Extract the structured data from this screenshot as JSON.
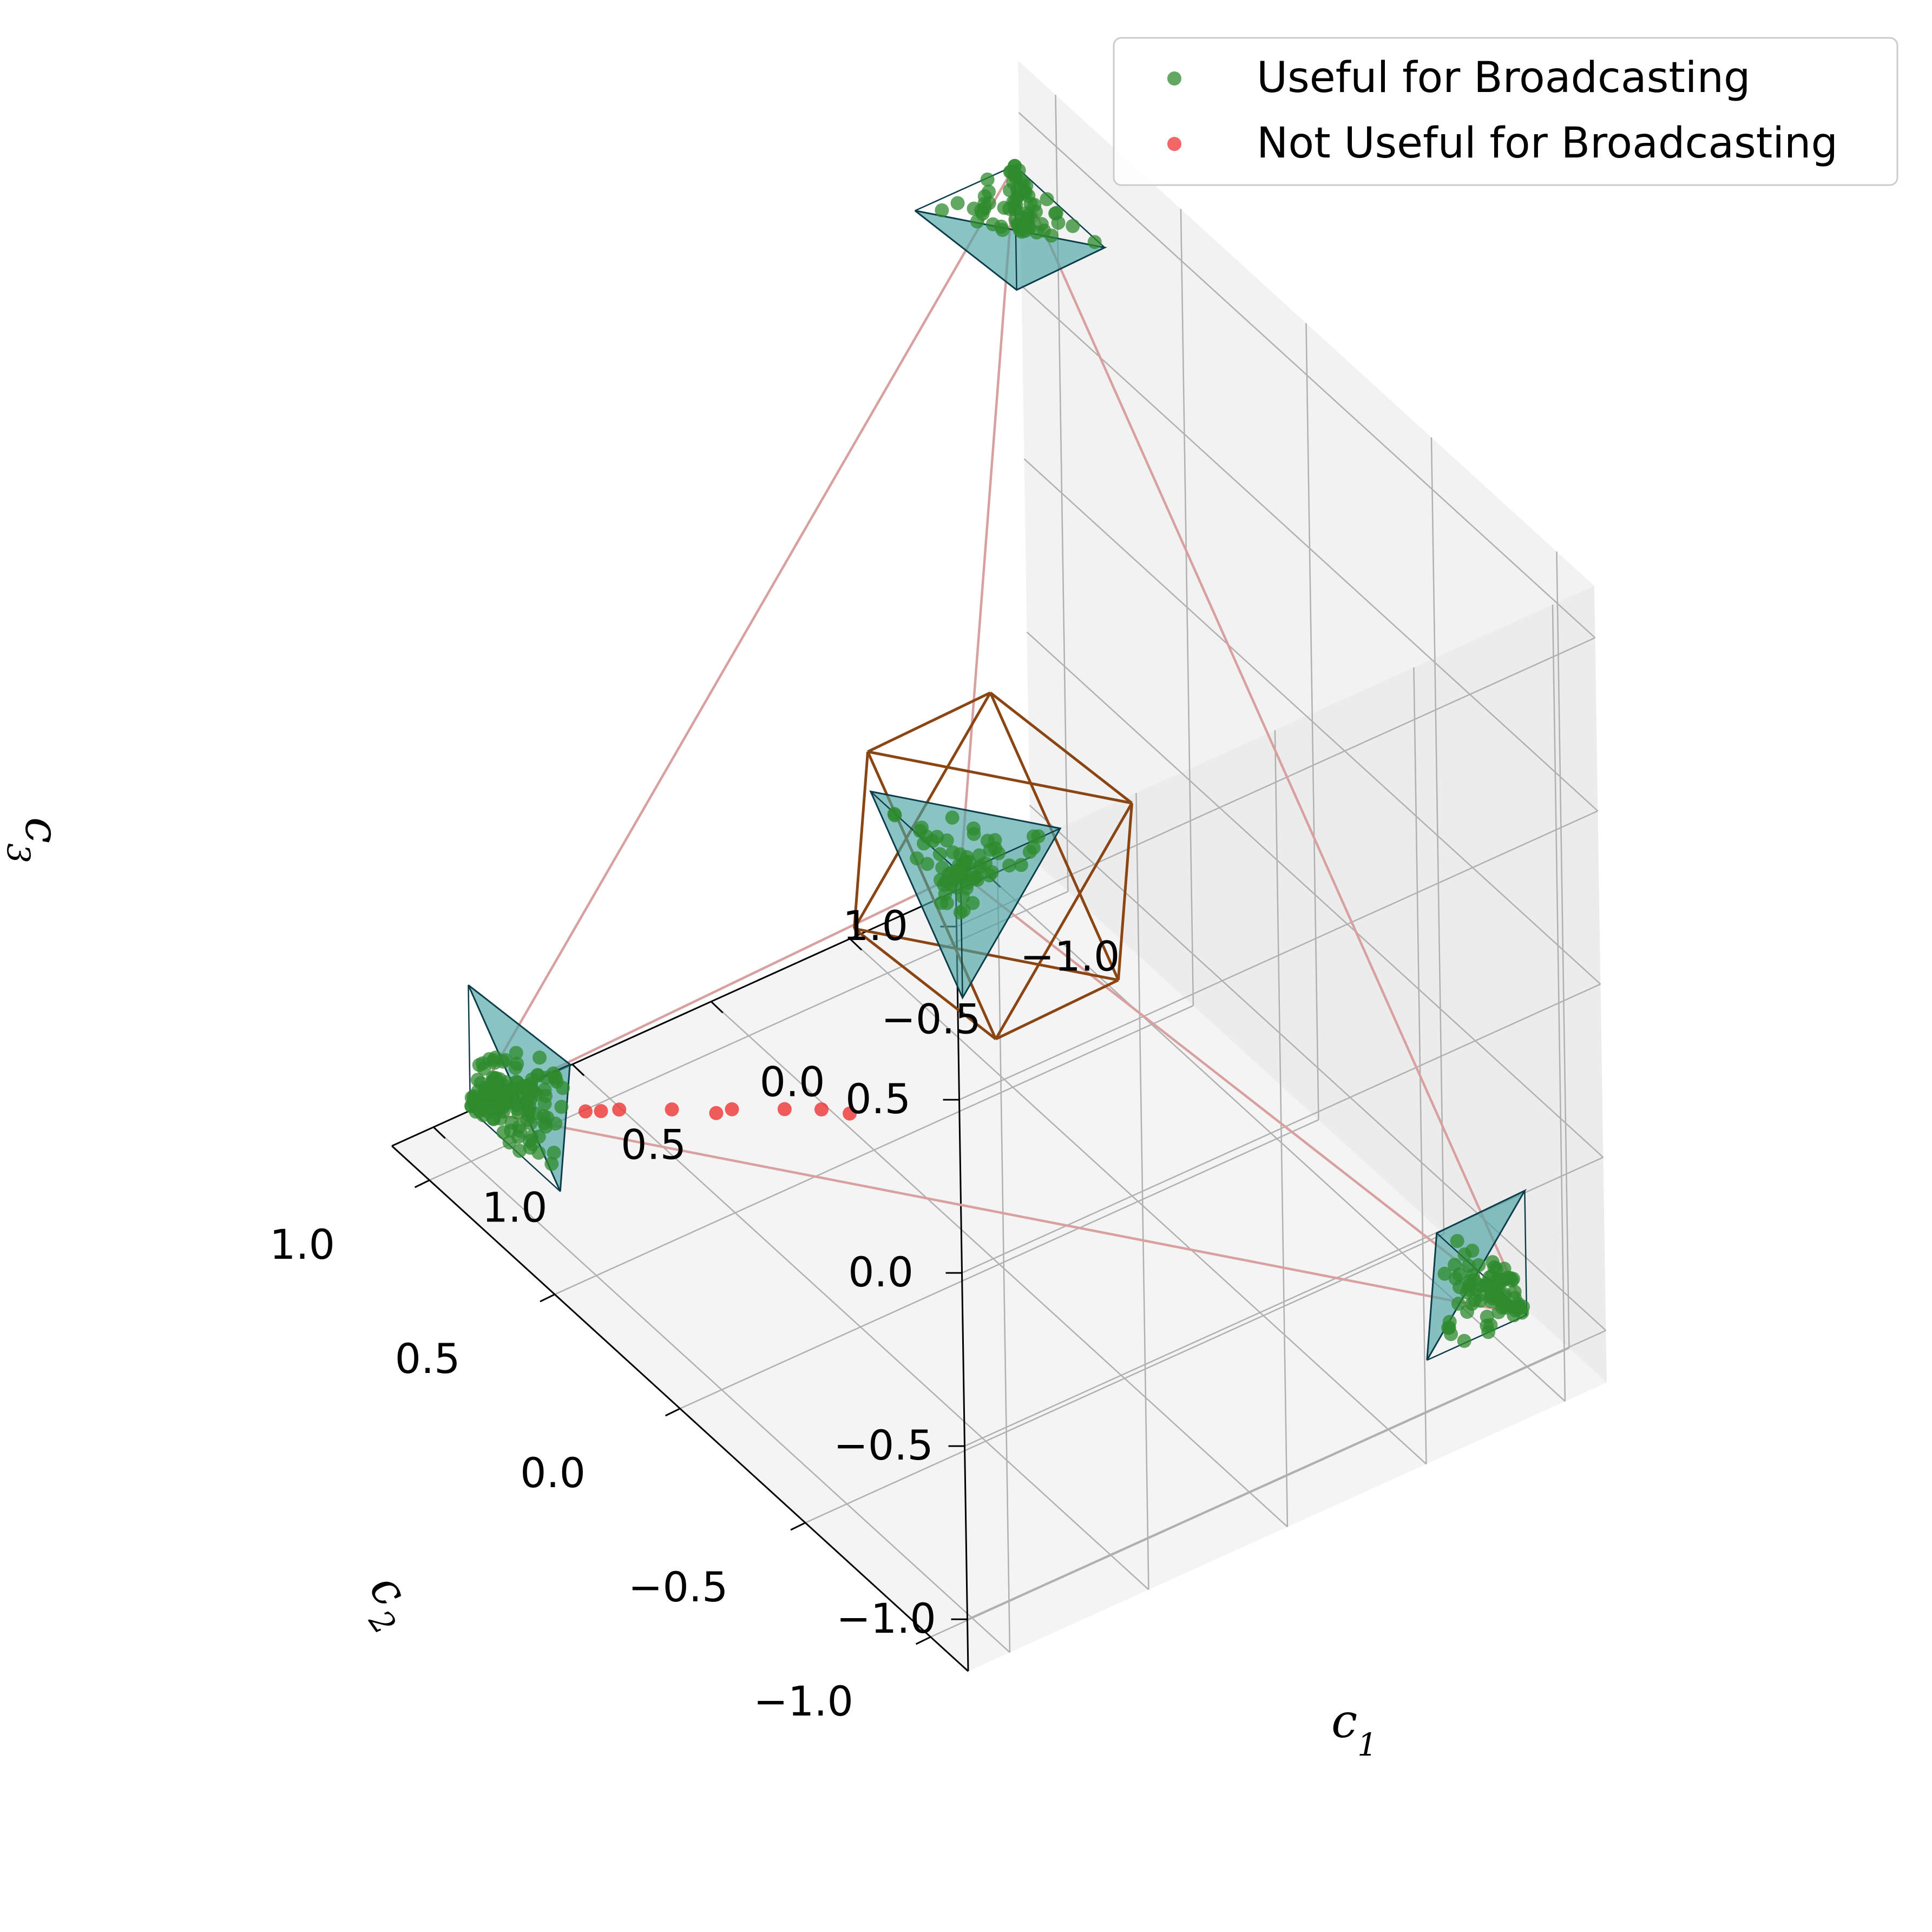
{
  "chart_data": {
    "type": "scatter",
    "subtype": "3d-scatter",
    "xlabel": "c1",
    "ylabel": "c2",
    "zlabel": "c3",
    "xlim": [
      -1.15,
      1.15
    ],
    "ylim": [
      -1.15,
      1.15
    ],
    "zlim": [
      -1.15,
      1.15
    ],
    "xticks": [
      "−1.0",
      "−0.5",
      "0.0",
      "0.5",
      "1.0"
    ],
    "yticks": [
      "−1.0",
      "−0.5",
      "0.0",
      "0.5",
      "1.0"
    ],
    "zticks": [
      "−1.0",
      "−0.5",
      "0.0",
      "0.5",
      "1.0"
    ],
    "grid": true,
    "legend_position": "top-right",
    "legend": [
      {
        "label": "Useful for Broadcasting",
        "color": "#2e8b2e"
      },
      {
        "label": "Not Useful for Broadcasting",
        "color": "#ee3333"
      }
    ],
    "colors": {
      "useful": "#2e8b2e",
      "not_useful": "#ee3333",
      "octahedron": "#8b4513",
      "tetra_edges": "#d9a0a0",
      "triangle_fill": "#4aa3a3",
      "triangle_edge": "#0b3d4a"
    },
    "tetrahedron_vertices": [
      [
        1,
        1,
        -1
      ],
      [
        -1,
        -1,
        -1
      ],
      [
        1,
        -1,
        1
      ],
      [
        -1,
        1,
        1
      ]
    ],
    "octahedron_vertices": [
      [
        0.5,
        0,
        0
      ],
      [
        -0.5,
        0,
        0
      ],
      [
        0,
        0.5,
        0
      ],
      [
        0,
        -0.5,
        0
      ],
      [
        0,
        0,
        0.5
      ],
      [
        0,
        0,
        -0.5
      ]
    ],
    "series": [
      {
        "name": "Useful for Broadcasting",
        "clusters": [
          {
            "vertex": [
              1,
              1,
              -1
            ],
            "count": 140,
            "spread": 0.28
          },
          {
            "vertex": [
              -1,
              -1,
              -1
            ],
            "count": 75,
            "spread": 0.28
          },
          {
            "vertex": [
              1,
              -1,
              1
            ],
            "count": 70,
            "spread": 0.28
          },
          {
            "vertex": [
              -1,
              1,
              1
            ],
            "count": 70,
            "spread": 0.28
          }
        ]
      },
      {
        "name": "Not Useful for Broadcasting",
        "points": [
          [
            0.35,
            0.2,
            -0.72
          ],
          [
            0.38,
            0.28,
            -0.75
          ],
          [
            0.45,
            0.35,
            -0.77
          ],
          [
            0.55,
            0.45,
            -0.8
          ],
          [
            0.58,
            0.48,
            -0.82
          ],
          [
            0.65,
            0.58,
            -0.85
          ],
          [
            0.75,
            0.68,
            -0.88
          ],
          [
            0.78,
            0.72,
            -0.9
          ],
          [
            0.8,
            0.76,
            -0.92
          ]
        ]
      }
    ]
  }
}
